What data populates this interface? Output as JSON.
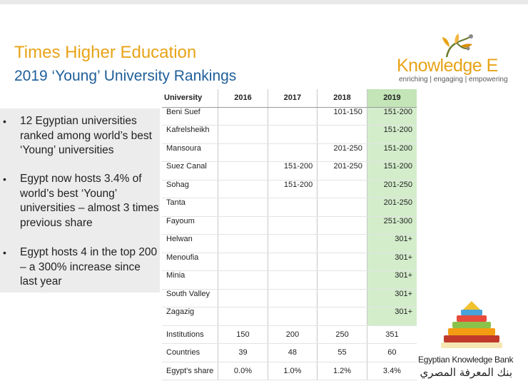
{
  "slide": {
    "title": "Times Higher Education",
    "subtitle": "2019 ‘Young’ University Rankings"
  },
  "logo": {
    "name": "Knowledge E",
    "tagline": "enriching | engaging | empowering",
    "color": "#e8a317"
  },
  "bullets": [
    "12 Egyptian universities ranked among world’s best ‘Young’ universities",
    "Egypt now hosts 3.4% of world’s best ‘Young’ universities – almost 3 times previous share",
    "Egypt hosts 4 in the top 200 – a 300% increase since last year"
  ],
  "table": {
    "headers": [
      "University",
      "2016",
      "2017",
      "2018",
      "2019"
    ],
    "rows": [
      [
        "Beni Suef",
        "",
        "",
        "101-150",
        "151-200"
      ],
      [
        "Kafrelsheikh",
        "",
        "",
        "",
        "151-200"
      ],
      [
        "Mansoura",
        "",
        "",
        "201-250",
        "151-200"
      ],
      [
        "Suez Canal",
        "",
        "151-200",
        "201-250",
        "151-200"
      ],
      [
        "Sohag",
        "",
        "151-200",
        "",
        "201-250"
      ],
      [
        "Tanta",
        "",
        "",
        "",
        "201-250"
      ],
      [
        "Fayoum",
        "",
        "",
        "",
        "251-300"
      ],
      [
        "Helwan",
        "",
        "",
        "",
        "301+"
      ],
      [
        "Menoufia",
        "",
        "",
        "",
        "301+"
      ],
      [
        "Minia",
        "",
        "",
        "",
        "301+"
      ],
      [
        "South Valley",
        "",
        "",
        "",
        "301+"
      ],
      [
        "Zagazig",
        "",
        "",
        "",
        "301+"
      ]
    ],
    "summary": [
      [
        "Institutions",
        "150",
        "200",
        "250",
        "351"
      ],
      [
        "Countries",
        "39",
        "48",
        "55",
        "60"
      ],
      [
        "Egypt's share",
        "0.0%",
        "1.0%",
        "1.2%",
        "3.4%"
      ]
    ],
    "highlight_color": "#d3edcb"
  },
  "ekb": {
    "name_en": "Egyptian Knowledge Bank",
    "name_ar": "بنك المعرفة المصري"
  }
}
